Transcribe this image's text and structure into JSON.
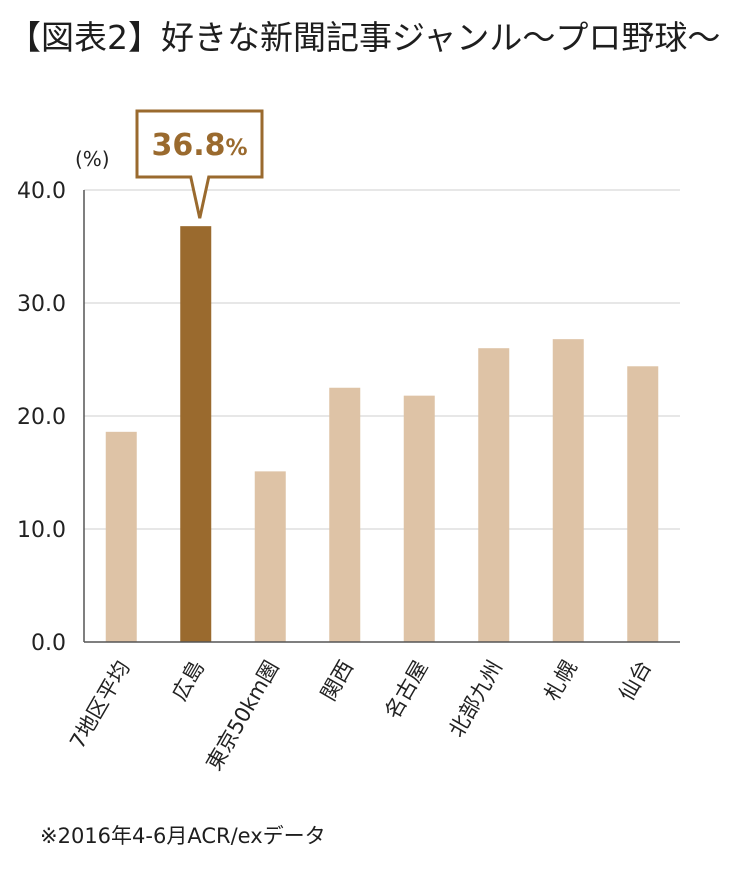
{
  "title": "【図表2】好きな新聞記事ジャンル〜プロ野球〜",
  "footnote": "※2016年4-6月ACR/exデータ",
  "colors": {
    "bar": "#dec3a6",
    "highlight": "#9a6a2e",
    "grid": "#cfcfcf",
    "axis": "#555555"
  },
  "chart_data": {
    "type": "bar",
    "title": "",
    "xlabel": "",
    "ylabel": "(%)",
    "ylim": [
      0,
      40
    ],
    "yticks": [
      "0.0",
      "10.0",
      "20.0",
      "30.0",
      "40.0"
    ],
    "grid": true,
    "categories": [
      "7地区平均",
      "広島",
      "東京50km圏",
      "関西",
      "名古屋",
      "北部九州",
      "札幌",
      "仙台"
    ],
    "values": [
      18.6,
      36.8,
      15.1,
      22.5,
      21.8,
      26.0,
      26.8,
      24.4
    ],
    "highlight_index": 1,
    "callout": {
      "value": "36.8",
      "unit": "%"
    }
  }
}
